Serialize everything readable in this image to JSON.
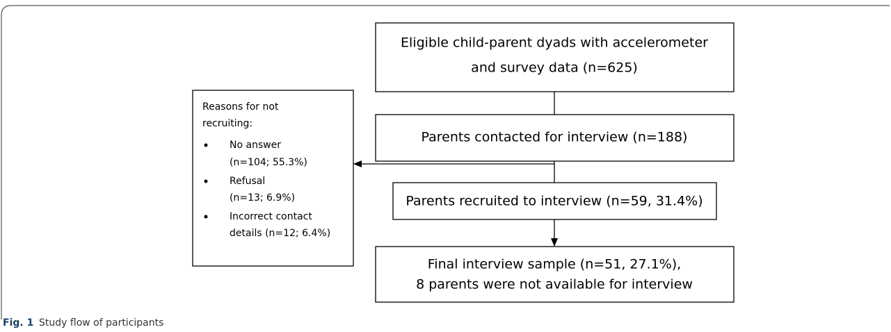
{
  "nodes": [
    {
      "lines": [
        "Eligible child-parent dyads with accelerometer",
        "and survey data (n=625)"
      ]
    },
    {
      "lines": [
        "Parents contacted for interview (n=188)"
      ]
    },
    {
      "lines": [
        "Parents recruited to interview (n=59, 31.4%)"
      ]
    },
    {
      "lines": [
        "Final interview sample (n=51, 27.1%),",
        "8 parents were not available for interview"
      ]
    }
  ],
  "exclusion": {
    "heading": [
      "Reasons for not",
      "recruiting:"
    ],
    "items": [
      {
        "lines": [
          "No answer",
          "(n=104; 55.3%)"
        ]
      },
      {
        "lines": [
          "Refusal",
          "(n=13; 6.9%)"
        ]
      },
      {
        "lines": [
          "Incorrect contact",
          "details (n=12; 6.4%)"
        ]
      }
    ]
  },
  "caption": {
    "label": "Fig. 1",
    "text": "Study flow of participants"
  }
}
